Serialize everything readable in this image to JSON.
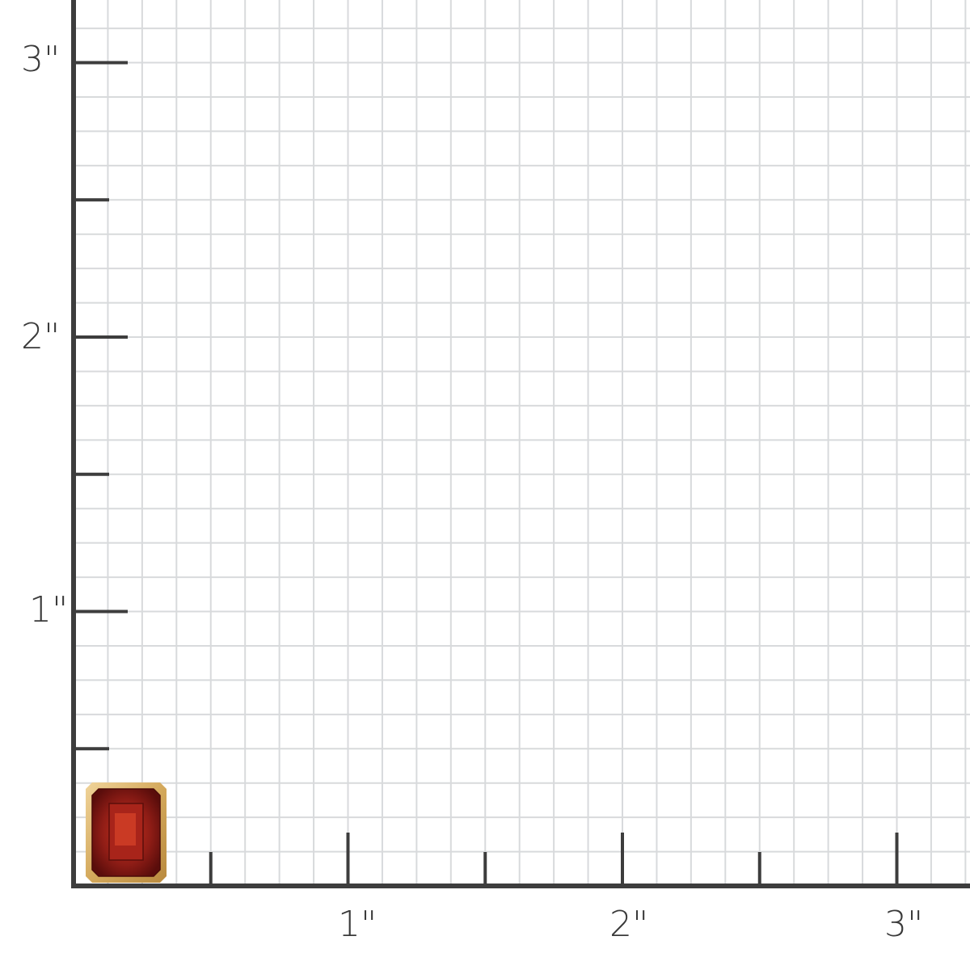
{
  "scale": {
    "unit_label_suffix": "\"",
    "x_labels": [
      "1\"",
      "2\"",
      "3\""
    ],
    "y_labels": [
      "1\"",
      "2\"",
      "3\""
    ],
    "subdivisions_per_inch": 8
  },
  "product": {
    "name": "",
    "icon": "emerald-cut-garnet-bezel-stud",
    "stone_color": "#8b1a14",
    "setting_color": "#d9b46a"
  },
  "colors": {
    "axis": "#3d3d3d",
    "grid": "#d8dadc",
    "background": "#ffffff"
  }
}
